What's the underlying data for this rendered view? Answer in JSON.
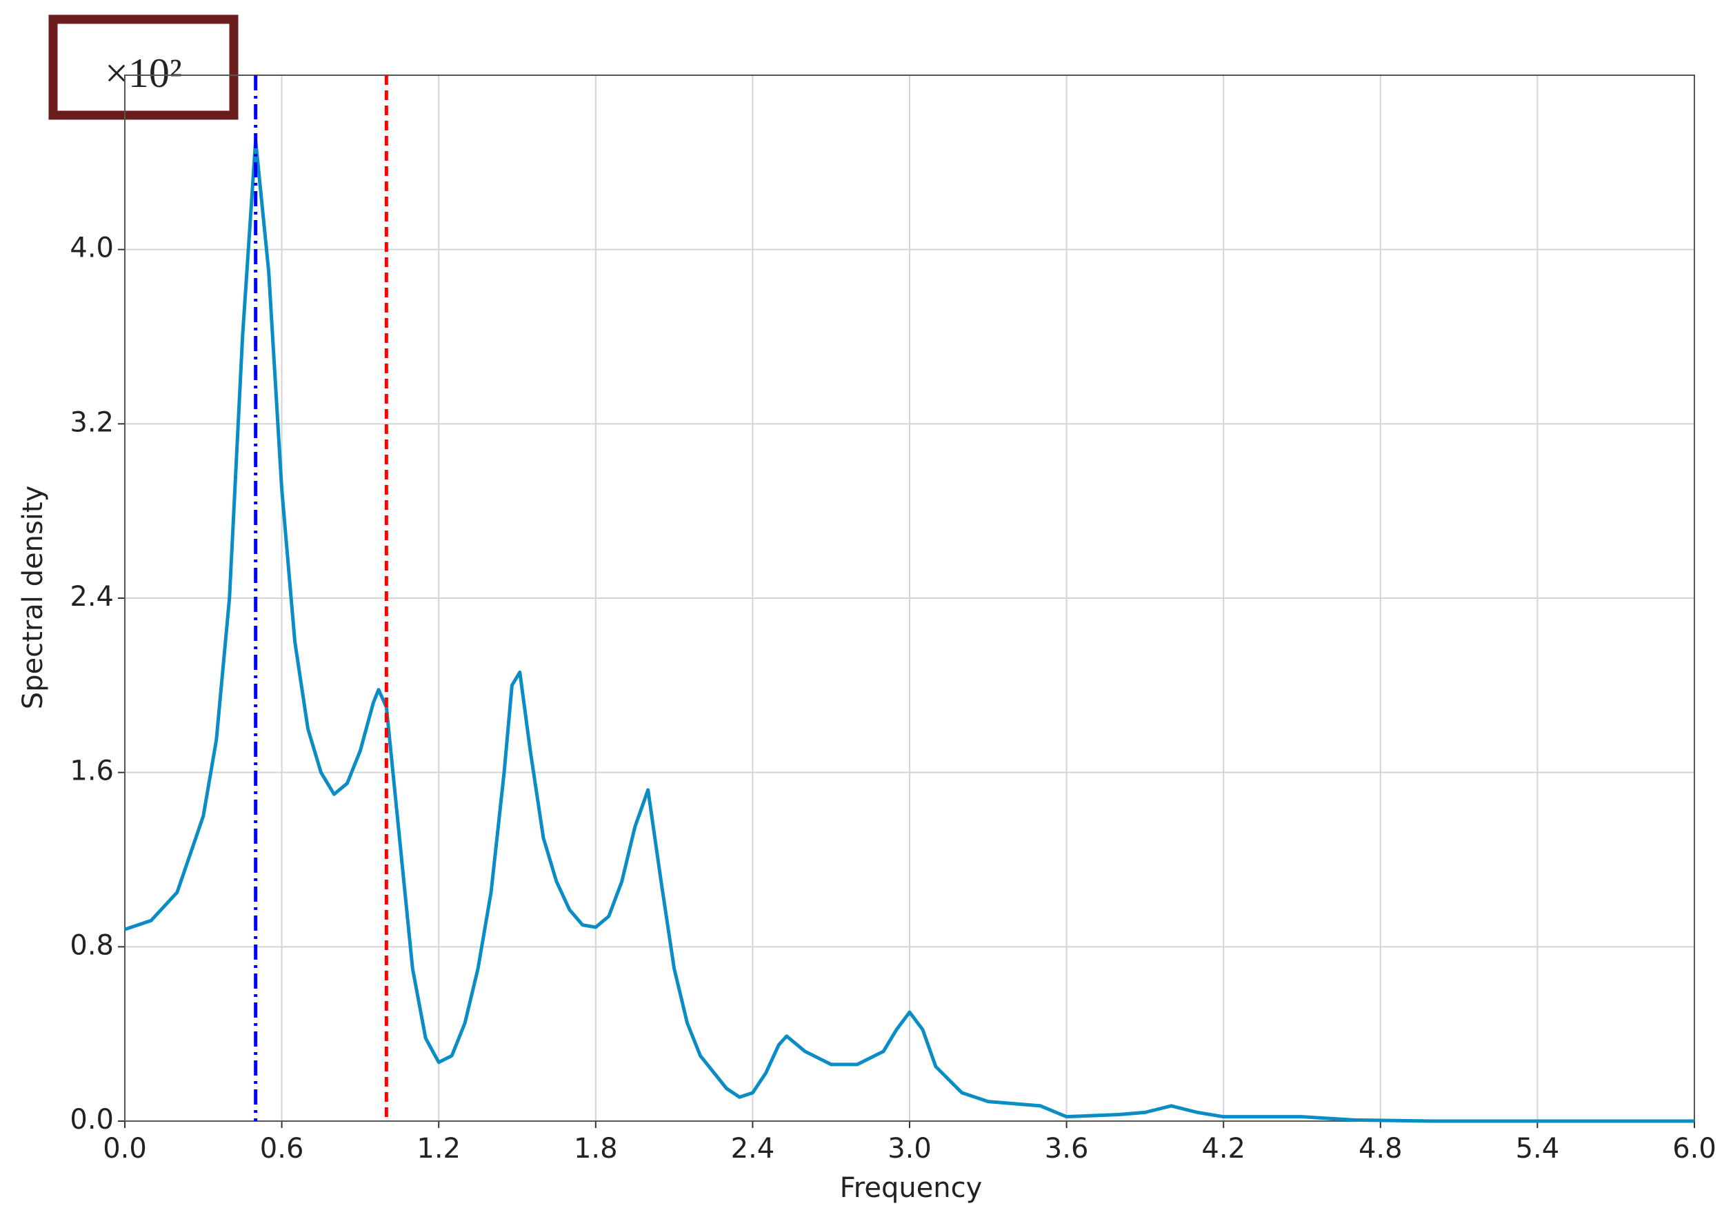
{
  "chart_data": {
    "type": "line",
    "annotation": "×10²",
    "xlabel": "Frequency",
    "ylabel": "Spectral density",
    "xlim": [
      0,
      6
    ],
    "ylim": [
      0,
      4.8
    ],
    "xticks": [
      {
        "value": 0,
        "label": "0.0"
      },
      0.6,
      1.2,
      1.8,
      2.4,
      {
        "value": 3,
        "label": "3.0"
      },
      3.6,
      4.2,
      4.8,
      5.4,
      {
        "value": 6,
        "label": "6.0"
      }
    ],
    "yticks": [
      {
        "value": 0,
        "label": "0.0"
      },
      0.8,
      1.6,
      2.4,
      3.2,
      {
        "value": 4,
        "label": "4.0"
      }
    ],
    "grid": true,
    "x": [
      0,
      0.1,
      0.2,
      0.3,
      0.35,
      0.4,
      0.45,
      0.5,
      0.55,
      0.6,
      0.65,
      0.7,
      0.75,
      0.8,
      0.85,
      0.9,
      0.95,
      0.97,
      1.0,
      1.05,
      1.1,
      1.15,
      1.2,
      1.25,
      1.3,
      1.35,
      1.4,
      1.45,
      1.48,
      1.51,
      1.55,
      1.6,
      1.65,
      1.7,
      1.75,
      1.8,
      1.85,
      1.9,
      1.95,
      2.0,
      2.05,
      2.1,
      2.15,
      2.2,
      2.3,
      2.35,
      2.4,
      2.45,
      2.5,
      2.53,
      2.6,
      2.7,
      2.8,
      2.9,
      2.95,
      3.0,
      3.05,
      3.1,
      3.2,
      3.3,
      3.4,
      3.5,
      3.6,
      3.8,
      3.9,
      4.0,
      4.1,
      4.2,
      4.5,
      4.7,
      5.0,
      6.0
    ],
    "series": [
      {
        "color": "#0a8cc4",
        "values": [
          0.88,
          0.92,
          1.05,
          1.4,
          1.75,
          2.4,
          3.6,
          4.5,
          3.9,
          2.9,
          2.2,
          1.8,
          1.6,
          1.5,
          1.55,
          1.7,
          1.92,
          1.98,
          1.9,
          1.3,
          0.7,
          0.38,
          0.27,
          0.3,
          0.45,
          0.7,
          1.05,
          1.6,
          2.0,
          2.06,
          1.7,
          1.3,
          1.1,
          0.97,
          0.9,
          0.89,
          0.94,
          1.1,
          1.35,
          1.52,
          1.1,
          0.7,
          0.45,
          0.3,
          0.15,
          0.11,
          0.13,
          0.22,
          0.35,
          0.39,
          0.32,
          0.26,
          0.26,
          0.32,
          0.42,
          0.5,
          0.42,
          0.25,
          0.13,
          0.09,
          0.08,
          0.07,
          0.02,
          0.03,
          0.04,
          0.07,
          0.04,
          0.02,
          0.02,
          0.005,
          0,
          0
        ]
      }
    ],
    "vlines": [
      {
        "x": 0.5,
        "color": "#0000ff",
        "style": "dash-dot"
      },
      {
        "x": 1.0,
        "color": "#ff0000",
        "style": "dashed"
      }
    ]
  }
}
